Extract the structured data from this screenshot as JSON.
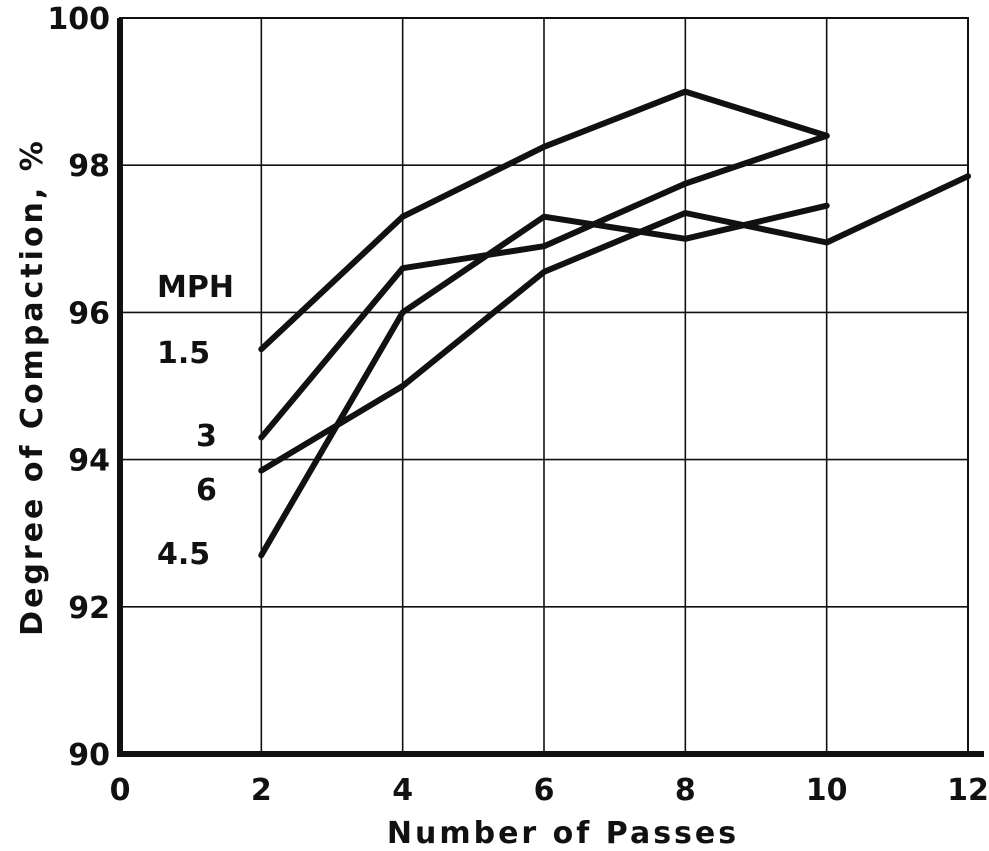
{
  "chart_data": {
    "type": "line",
    "title": "",
    "xlabel": "Number of Passes",
    "ylabel": "Degree of Compaction, %",
    "xlim": [
      0,
      12
    ],
    "ylim": [
      90,
      100
    ],
    "x_ticks": [
      0,
      2,
      4,
      6,
      8,
      10,
      12
    ],
    "x_tick_labels": [
      "0",
      "2",
      "4",
      "6",
      "8",
      "10",
      "12"
    ],
    "y_ticks": [
      90,
      92,
      94,
      96,
      98,
      100
    ],
    "y_tick_labels": [
      "90",
      "92",
      "94",
      "96",
      "98",
      "100"
    ],
    "grid": true,
    "legend_title": "MPH",
    "series": [
      {
        "name": "1.5",
        "x": [
          2,
          4,
          6,
          8,
          10
        ],
        "values": [
          95.5,
          97.3,
          98.25,
          99.0,
          98.4
        ]
      },
      {
        "name": "3",
        "x": [
          2,
          4,
          6,
          8,
          10
        ],
        "values": [
          94.3,
          96.6,
          96.9,
          97.75,
          98.4
        ]
      },
      {
        "name": "6",
        "x": [
          2,
          4,
          6,
          8,
          10,
          12
        ],
        "values": [
          93.85,
          95.0,
          96.55,
          97.35,
          96.95,
          97.85
        ]
      },
      {
        "name": "4.5",
        "x": [
          2,
          4,
          6,
          8,
          10
        ],
        "values": [
          92.7,
          96.0,
          97.3,
          97.0,
          97.45
        ]
      }
    ]
  }
}
